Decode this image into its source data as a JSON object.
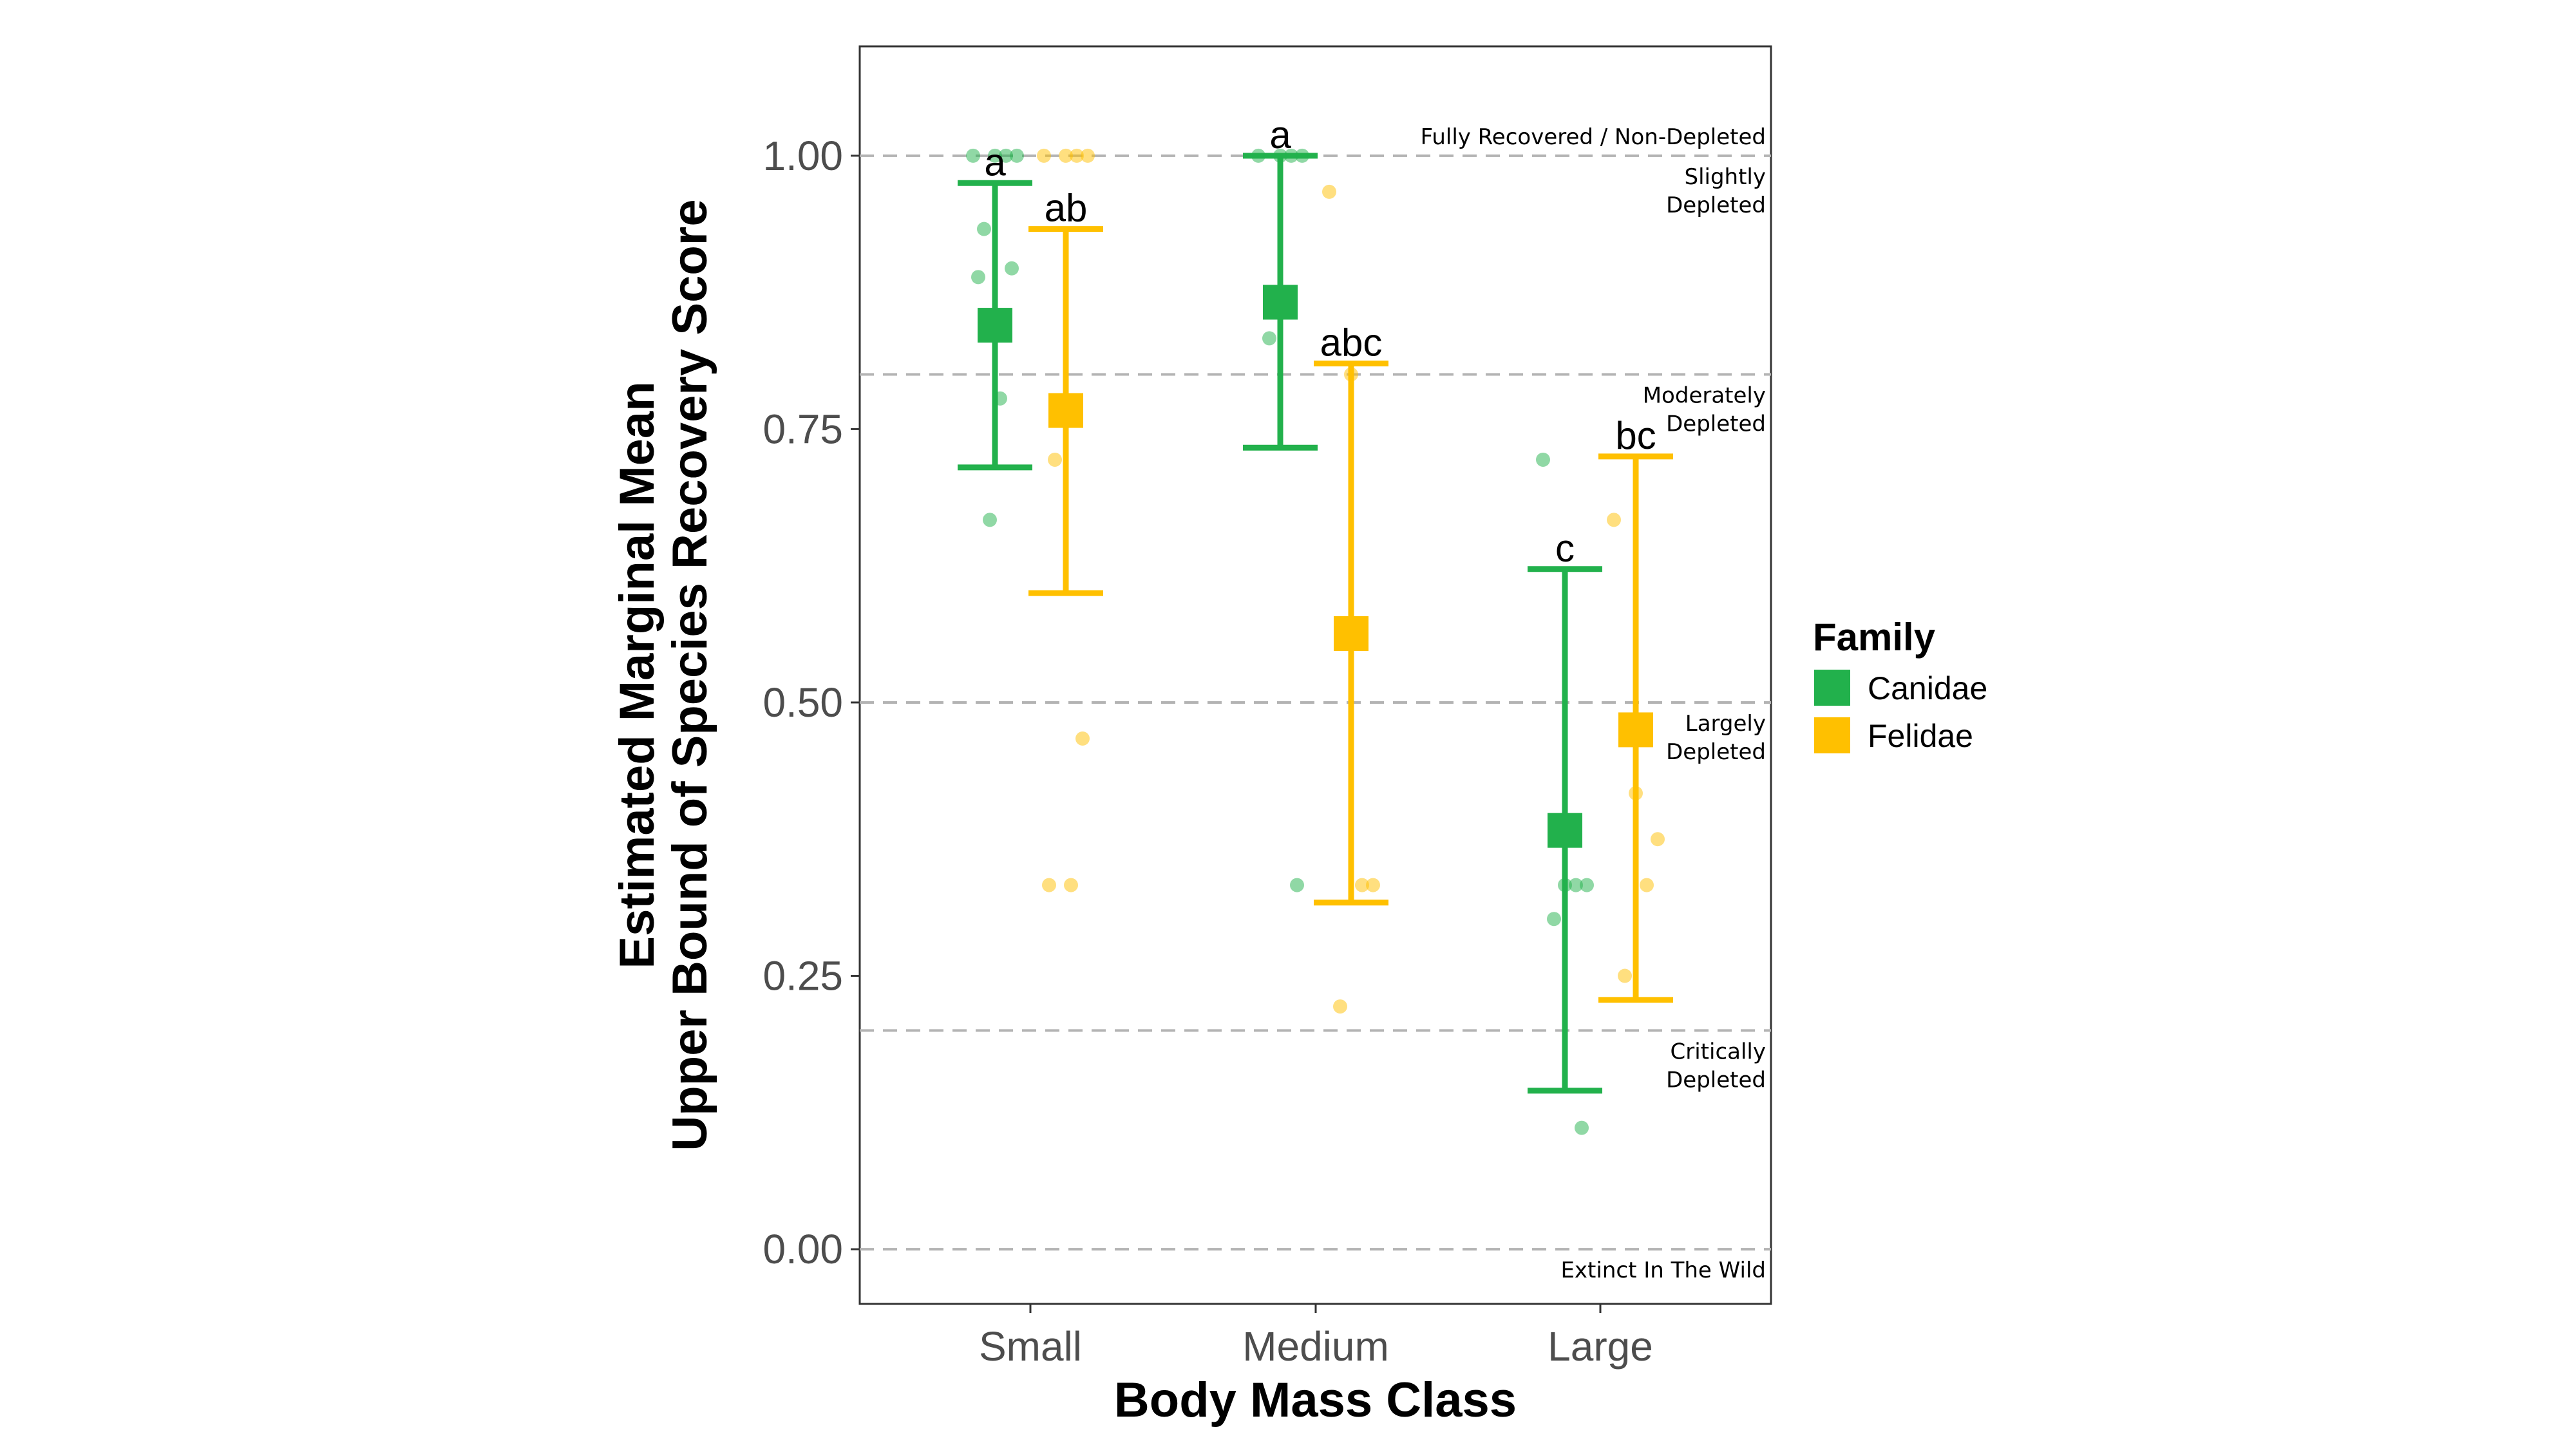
{
  "chart_data": {
    "type": "scatter",
    "subtype": "estimated-marginal-means-with-error-bars",
    "xlabel": "Body Mass Class",
    "ylabel_lines": [
      "Estimated Marginal Mean",
      "Upper Bound of Species Recovery Score"
    ],
    "categories": [
      "Small",
      "Medium",
      "Large"
    ],
    "ylim": [
      -0.05,
      1.1
    ],
    "yticks": [
      0.0,
      0.25,
      0.5,
      0.75,
      1.0
    ],
    "ytick_labels": [
      "0.00",
      "0.25",
      "0.50",
      "0.75",
      "1.00"
    ],
    "grid": false,
    "reference_lines": [
      {
        "y": 1.0,
        "label_lines": [
          "Fully Recovered / Non-Depleted"
        ],
        "label_side": "above"
      },
      {
        "y": 1.0,
        "label_lines": [
          "Slightly",
          "Depleted"
        ],
        "label_side": "below"
      },
      {
        "y": 0.8,
        "label_lines": [
          "Moderately",
          "Depleted"
        ],
        "label_side": "below"
      },
      {
        "y": 0.5,
        "label_lines": [
          "Largely",
          "Depleted"
        ],
        "label_side": "below"
      },
      {
        "y": 0.2,
        "label_lines": [
          "Critically",
          "Depleted"
        ],
        "label_side": "below"
      },
      {
        "y": 0.0,
        "label_lines": [
          "Extinct In The Wild"
        ],
        "label_side": "below"
      }
    ],
    "legend": {
      "title": "Family",
      "position": "right"
    },
    "series": [
      {
        "name": "Canidae",
        "color": "#22b14c",
        "means": [
          0.845,
          0.866,
          0.383
        ],
        "ci_lower": [
          0.715,
          0.733,
          0.145
        ],
        "ci_upper": [
          0.975,
          1.0,
          0.622
        ],
        "sig_letters": [
          "a",
          "a",
          "c"
        ],
        "points": [
          [
            1.0,
            1.0,
            1.0,
            1.0,
            0.933,
            0.897,
            0.889,
            0.778,
            0.667
          ],
          [
            1.0,
            1.0,
            1.0,
            1.0,
            0.833,
            0.333
          ],
          [
            0.722,
            0.333,
            0.333,
            0.333,
            0.302,
            0.111
          ]
        ]
      },
      {
        "name": "Felidae",
        "color": "#ffc000",
        "means": [
          0.767,
          0.563,
          0.475
        ],
        "ci_lower": [
          0.6,
          0.317,
          0.228
        ],
        "ci_upper": [
          0.933,
          0.81,
          0.725
        ],
        "sig_letters": [
          "ab",
          "abc",
          "bc"
        ],
        "points": [
          [
            1.0,
            1.0,
            1.0,
            1.0,
            0.722,
            0.467,
            0.333,
            0.333
          ],
          [
            0.967,
            0.8,
            0.333,
            0.333,
            0.222
          ],
          [
            0.667,
            0.417,
            0.375,
            0.333,
            0.25
          ]
        ]
      }
    ]
  }
}
